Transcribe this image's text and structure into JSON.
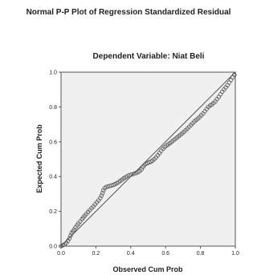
{
  "chart_data": {
    "type": "scatter",
    "title": "Normal P-P Plot of Regression Standardized Residual",
    "subtitle": "Dependent Variable: Niat Beli",
    "xlabel": "Observed Cum Prob",
    "ylabel": "Expected Cum Prob",
    "xlim": [
      0,
      1
    ],
    "ylim": [
      0,
      1
    ],
    "xticks": [
      "0.0",
      "0.2",
      "0.4",
      "0.6",
      "0.8",
      "1.0"
    ],
    "yticks": [
      "0.0",
      "0.2",
      "0.4",
      "0.6",
      "0.8",
      "1.0"
    ],
    "reference_line": [
      [
        0,
        0
      ],
      [
        1,
        1
      ]
    ],
    "colors": {
      "plot_bg": "#f0f0f0",
      "points": "#555555",
      "line": "#555555",
      "frame": "#555555"
    },
    "points": [
      [
        0.0,
        0.0
      ],
      [
        0.01,
        0.005
      ],
      [
        0.02,
        0.01
      ],
      [
        0.03,
        0.018
      ],
      [
        0.04,
        0.03
      ],
      [
        0.048,
        0.045
      ],
      [
        0.055,
        0.06
      ],
      [
        0.06,
        0.075
      ],
      [
        0.068,
        0.085
      ],
      [
        0.075,
        0.095
      ],
      [
        0.083,
        0.108
      ],
      [
        0.092,
        0.12
      ],
      [
        0.1,
        0.13
      ],
      [
        0.11,
        0.142
      ],
      [
        0.12,
        0.155
      ],
      [
        0.128,
        0.165
      ],
      [
        0.136,
        0.175
      ],
      [
        0.145,
        0.185
      ],
      [
        0.155,
        0.196
      ],
      [
        0.165,
        0.207
      ],
      [
        0.175,
        0.218
      ],
      [
        0.185,
        0.228
      ],
      [
        0.195,
        0.24
      ],
      [
        0.205,
        0.252
      ],
      [
        0.215,
        0.263
      ],
      [
        0.225,
        0.276
      ],
      [
        0.232,
        0.29
      ],
      [
        0.238,
        0.305
      ],
      [
        0.243,
        0.32
      ],
      [
        0.25,
        0.333
      ],
      [
        0.26,
        0.34
      ],
      [
        0.27,
        0.343
      ],
      [
        0.28,
        0.346
      ],
      [
        0.29,
        0.349
      ],
      [
        0.3,
        0.352
      ],
      [
        0.31,
        0.356
      ],
      [
        0.32,
        0.362
      ],
      [
        0.33,
        0.368
      ],
      [
        0.34,
        0.375
      ],
      [
        0.35,
        0.382
      ],
      [
        0.36,
        0.39
      ],
      [
        0.37,
        0.396
      ],
      [
        0.38,
        0.402
      ],
      [
        0.392,
        0.408
      ],
      [
        0.405,
        0.412
      ],
      [
        0.418,
        0.416
      ],
      [
        0.43,
        0.42
      ],
      [
        0.442,
        0.425
      ],
      [
        0.452,
        0.432
      ],
      [
        0.462,
        0.442
      ],
      [
        0.47,
        0.455
      ],
      [
        0.478,
        0.465
      ],
      [
        0.487,
        0.473
      ],
      [
        0.496,
        0.478
      ],
      [
        0.506,
        0.482
      ],
      [
        0.516,
        0.486
      ],
      [
        0.525,
        0.492
      ],
      [
        0.535,
        0.5
      ],
      [
        0.545,
        0.51
      ],
      [
        0.555,
        0.522
      ],
      [
        0.565,
        0.535
      ],
      [
        0.575,
        0.548
      ],
      [
        0.585,
        0.56
      ],
      [
        0.595,
        0.57
      ],
      [
        0.605,
        0.578
      ],
      [
        0.615,
        0.585
      ],
      [
        0.625,
        0.592
      ],
      [
        0.635,
        0.6
      ],
      [
        0.645,
        0.608
      ],
      [
        0.655,
        0.616
      ],
      [
        0.665,
        0.624
      ],
      [
        0.675,
        0.632
      ],
      [
        0.685,
        0.64
      ],
      [
        0.695,
        0.648
      ],
      [
        0.705,
        0.657
      ],
      [
        0.715,
        0.666
      ],
      [
        0.725,
        0.676
      ],
      [
        0.735,
        0.686
      ],
      [
        0.745,
        0.696
      ],
      [
        0.755,
        0.706
      ],
      [
        0.765,
        0.716
      ],
      [
        0.775,
        0.725
      ],
      [
        0.785,
        0.733
      ],
      [
        0.795,
        0.742
      ],
      [
        0.805,
        0.752
      ],
      [
        0.815,
        0.762
      ],
      [
        0.825,
        0.775
      ],
      [
        0.835,
        0.788
      ],
      [
        0.845,
        0.8
      ],
      [
        0.855,
        0.808
      ],
      [
        0.865,
        0.814
      ],
      [
        0.875,
        0.822
      ],
      [
        0.885,
        0.832
      ],
      [
        0.895,
        0.845
      ],
      [
        0.905,
        0.858
      ],
      [
        0.915,
        0.872
      ],
      [
        0.925,
        0.888
      ],
      [
        0.935,
        0.9
      ],
      [
        0.945,
        0.912
      ],
      [
        0.955,
        0.925
      ],
      [
        0.965,
        0.94
      ],
      [
        0.975,
        0.955
      ],
      [
        0.985,
        0.97
      ],
      [
        0.995,
        0.985
      ]
    ]
  }
}
